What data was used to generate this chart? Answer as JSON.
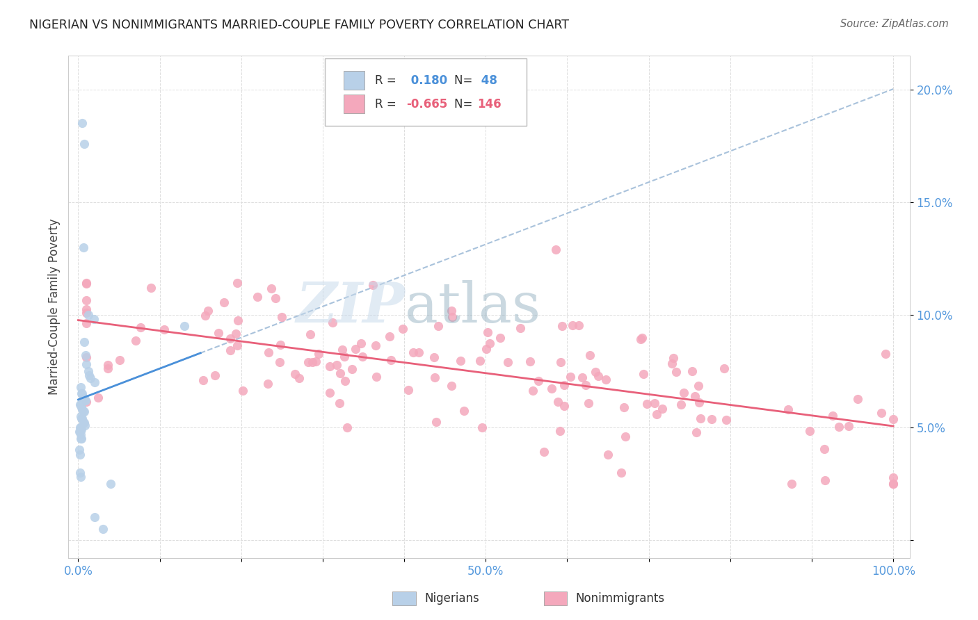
{
  "title": "NIGERIAN VS NONIMMIGRANTS MARRIED-COUPLE FAMILY POVERTY CORRELATION CHART",
  "source": "Source: ZipAtlas.com",
  "ylabel": "Married-Couple Family Poverty",
  "nigerian_color": "#b8d0e8",
  "nonimm_color": "#f4a8bc",
  "nigerian_line_color": "#4a90d9",
  "nonimm_line_color": "#e8607a",
  "dashed_line_color": "#a0bcd8",
  "legend_R_nigerian": " 0.180",
  "legend_N_nigerian": " 48",
  "legend_R_nonimm": "-0.665",
  "legend_N_nonimm": "146",
  "nigerian_seed": 77,
  "nonimm_seed": 33,
  "bg_color": "#ffffff",
  "grid_color": "#dddddd",
  "title_color": "#222222",
  "source_color": "#666666",
  "tick_color": "#5599dd",
  "ylabel_color": "#444444",
  "watermark_zip_color": "#c5d8ea",
  "watermark_atlas_color": "#8aaabb"
}
